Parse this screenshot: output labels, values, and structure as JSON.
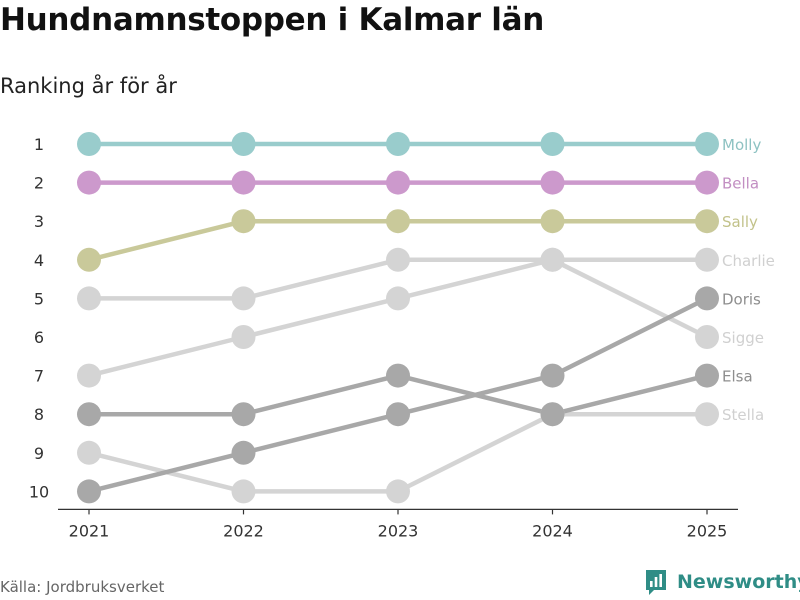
{
  "title": "Hundnamnstoppen i Kalmar län",
  "subtitle": "Ranking år för år",
  "source": "Källa: Jordbruksverket",
  "brand": {
    "name": "Newsworthy",
    "icon": "newsworthy-logo-icon",
    "color": "#2f8d86"
  },
  "chart_data": {
    "type": "line",
    "subtype": "bump",
    "title": "Hundnamnstoppen i Kalmar län",
    "subtitle": "Ranking år för år",
    "x": [
      "2021",
      "2022",
      "2023",
      "2024",
      "2025"
    ],
    "ylim": [
      1,
      10
    ],
    "y_inverted": true,
    "y_ticks": [
      "1",
      "2",
      "3",
      "4",
      "5",
      "6",
      "7",
      "8",
      "9",
      "10"
    ],
    "xlabel": "",
    "ylabel": "",
    "grid": false,
    "series": [
      {
        "name": "Stella",
        "values": [
          9,
          10,
          10,
          8,
          8
        ],
        "color": "#d4d4d4",
        "label_color": "#d0d0d0"
      },
      {
        "name": "Sigge",
        "values": [
          7,
          6,
          5,
          4,
          6
        ],
        "color": "#d4d4d4",
        "label_color": "#d0d0d0"
      },
      {
        "name": "Charlie",
        "values": [
          5,
          5,
          4,
          4,
          4
        ],
        "color": "#d4d4d4",
        "label_color": "#d0d0d0"
      },
      {
        "name": "Elsa",
        "values": [
          8,
          8,
          7,
          8,
          7
        ],
        "color": "#a8a8a8",
        "label_color": "#8e8e8e"
      },
      {
        "name": "Doris",
        "values": [
          10,
          9,
          8,
          7,
          5
        ],
        "color": "#a8a8a8",
        "label_color": "#8e8e8e"
      },
      {
        "name": "Sally",
        "values": [
          4,
          3,
          3,
          3,
          3
        ],
        "color": "#c9c99a",
        "label_color": "#c2c28a"
      },
      {
        "name": "Bella",
        "values": [
          2,
          2,
          2,
          2,
          2
        ],
        "color": "#cc99cc",
        "label_color": "#c28ec2"
      },
      {
        "name": "Molly",
        "values": [
          1,
          1,
          1,
          1,
          1
        ],
        "color": "#99cccc",
        "label_color": "#8ec2c2"
      }
    ]
  }
}
